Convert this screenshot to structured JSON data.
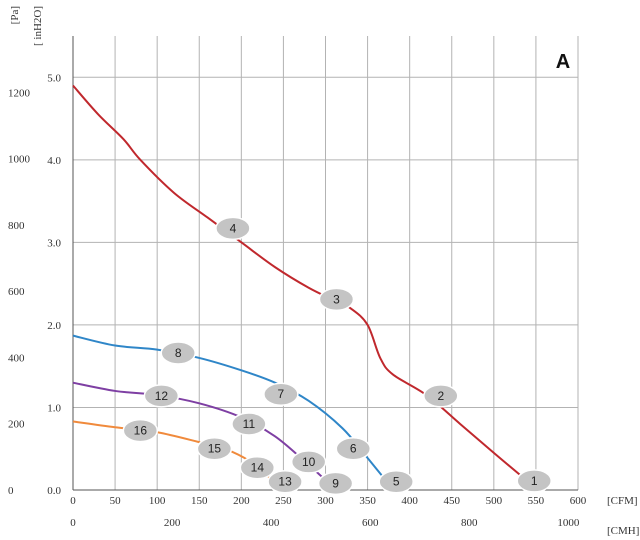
{
  "chart_data": {
    "type": "line",
    "panel_label": "A",
    "x_axis": {
      "unit_label": "[CFM]",
      "range": [
        0,
        600
      ],
      "ticks": [
        "0",
        "50",
        "100",
        "150",
        "200",
        "250",
        "300",
        "350",
        "400",
        "450",
        "500",
        "550",
        "600"
      ]
    },
    "x2_axis": {
      "unit_label": "[CMH]",
      "range": [
        0,
        1019.4
      ],
      "ticks": [
        {
          "value": 0,
          "label": "0"
        },
        {
          "value": 200,
          "label": "200"
        },
        {
          "value": 400,
          "label": "400"
        },
        {
          "value": 600,
          "label": "600"
        },
        {
          "value": 800,
          "label": "800"
        },
        {
          "value": 1000,
          "label": "1000"
        }
      ]
    },
    "y_axis": {
      "unit_label": "[ inH2O]",
      "range": [
        0,
        5.5
      ],
      "ticks": [
        "0.0",
        "1.0",
        "2.0",
        "3.0",
        "4.0",
        "5.0"
      ]
    },
    "y2_axis": {
      "unit_label": "[Pa]",
      "range": [
        0,
        1370
      ],
      "ticks": [
        {
          "value": 0,
          "label": "0"
        },
        {
          "value": 200,
          "label": "200"
        },
        {
          "value": 400,
          "label": "400"
        },
        {
          "value": 600,
          "label": "600"
        },
        {
          "value": 800,
          "label": "800"
        },
        {
          "value": 1000,
          "label": "1000"
        },
        {
          "value": 1200,
          "label": "1200"
        }
      ]
    },
    "grid": true,
    "series": [
      {
        "color": "#c0282d",
        "points": [
          [
            0,
            4.9
          ],
          [
            30,
            4.55
          ],
          [
            60,
            4.25
          ],
          [
            80,
            4.0
          ],
          [
            120,
            3.6
          ],
          [
            160,
            3.3
          ],
          [
            200,
            3.0
          ],
          [
            240,
            2.7
          ],
          [
            280,
            2.45
          ],
          [
            310,
            2.3
          ],
          [
            330,
            2.2
          ],
          [
            350,
            2.0
          ],
          [
            365,
            1.6
          ],
          [
            380,
            1.4
          ],
          [
            420,
            1.15
          ],
          [
            460,
            0.8
          ],
          [
            500,
            0.45
          ],
          [
            535,
            0.15
          ]
        ]
      },
      {
        "color": "#2f86c8",
        "points": [
          [
            0,
            1.87
          ],
          [
            50,
            1.75
          ],
          [
            100,
            1.7
          ],
          [
            150,
            1.6
          ],
          [
            200,
            1.45
          ],
          [
            240,
            1.3
          ],
          [
            280,
            1.08
          ],
          [
            320,
            0.75
          ],
          [
            345,
            0.45
          ],
          [
            365,
            0.2
          ],
          [
            380,
            0.02
          ]
        ]
      },
      {
        "color": "#7e3fa3",
        "points": [
          [
            0,
            1.3
          ],
          [
            50,
            1.2
          ],
          [
            100,
            1.15
          ],
          [
            150,
            1.05
          ],
          [
            200,
            0.88
          ],
          [
            240,
            0.65
          ],
          [
            275,
            0.35
          ],
          [
            300,
            0.12
          ],
          [
            310,
            0.02
          ]
        ]
      },
      {
        "color": "#f08a3c",
        "points": [
          [
            0,
            0.83
          ],
          [
            50,
            0.76
          ],
          [
            100,
            0.7
          ],
          [
            150,
            0.58
          ],
          [
            180,
            0.5
          ],
          [
            210,
            0.35
          ],
          [
            230,
            0.18
          ],
          [
            245,
            0.06
          ],
          [
            252,
            0.02
          ]
        ]
      }
    ],
    "markers": [
      {
        "label": "1",
        "x": 548,
        "y": 0.11
      },
      {
        "label": "2",
        "x": 437,
        "y": 1.14
      },
      {
        "label": "3",
        "x": 313,
        "y": 2.31
      },
      {
        "label": "4",
        "x": 190,
        "y": 3.17
      },
      {
        "label": "5",
        "x": 384,
        "y": 0.1
      },
      {
        "label": "6",
        "x": 333,
        "y": 0.5
      },
      {
        "label": "7",
        "x": 247,
        "y": 1.16
      },
      {
        "label": "8",
        "x": 125,
        "y": 1.66
      },
      {
        "label": "9",
        "x": 312,
        "y": 0.08
      },
      {
        "label": "10",
        "x": 280,
        "y": 0.34
      },
      {
        "label": "11",
        "x": 209,
        "y": 0.8
      },
      {
        "label": "12",
        "x": 105,
        "y": 1.14
      },
      {
        "label": "13",
        "x": 252,
        "y": 0.1
      },
      {
        "label": "14",
        "x": 219,
        "y": 0.27
      },
      {
        "label": "15",
        "x": 168,
        "y": 0.5
      },
      {
        "label": "16",
        "x": 80,
        "y": 0.72
      }
    ]
  }
}
